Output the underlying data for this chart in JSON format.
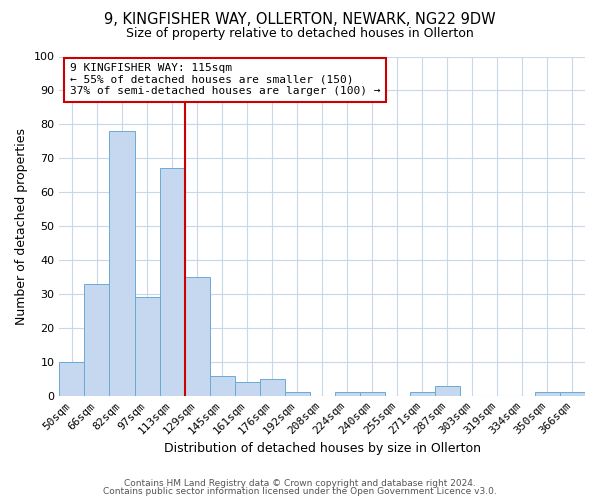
{
  "title1": "9, KINGFISHER WAY, OLLERTON, NEWARK, NG22 9DW",
  "title2": "Size of property relative to detached houses in Ollerton",
  "xlabel": "Distribution of detached houses by size in Ollerton",
  "ylabel": "Number of detached properties",
  "categories": [
    "50sqm",
    "66sqm",
    "82sqm",
    "97sqm",
    "113sqm",
    "129sqm",
    "145sqm",
    "161sqm",
    "176sqm",
    "192sqm",
    "208sqm",
    "224sqm",
    "240sqm",
    "255sqm",
    "271sqm",
    "287sqm",
    "303sqm",
    "319sqm",
    "334sqm",
    "350sqm",
    "366sqm"
  ],
  "values": [
    10,
    33,
    78,
    29,
    67,
    35,
    6,
    4,
    5,
    1,
    0,
    1,
    1,
    0,
    1,
    3,
    0,
    0,
    0,
    1,
    1
  ],
  "bar_color": "#c5d8f0",
  "bar_edgecolor": "#6aaad4",
  "vline_color": "#cc0000",
  "vline_x_index": 4,
  "annotation_title": "9 KINGFISHER WAY: 115sqm",
  "annotation_line2": "← 55% of detached houses are smaller (150)",
  "annotation_line3": "37% of semi-detached houses are larger (100) →",
  "annotation_box_edgecolor": "#cc0000",
  "ylim": [
    0,
    100
  ],
  "yticks": [
    0,
    10,
    20,
    30,
    40,
    50,
    60,
    70,
    80,
    90,
    100
  ],
  "footer1": "Contains HM Land Registry data © Crown copyright and database right 2024.",
  "footer2": "Contains public sector information licensed under the Open Government Licence v3.0.",
  "fig_bg_color": "#ffffff",
  "plot_bg_color": "#ffffff",
  "grid_color": "#c8d8e8"
}
